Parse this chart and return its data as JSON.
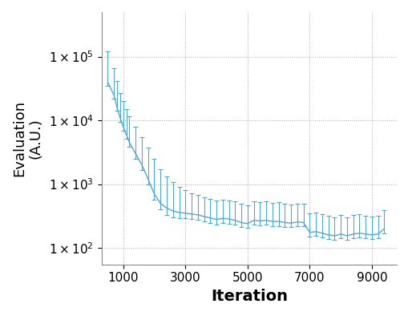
{
  "xlabel": "Iteration",
  "ylabel": "Evaluation\n(A.U.)",
  "line_color": "#4EA8D2",
  "background_color": "#ffffff",
  "xlim": [
    300,
    9800
  ],
  "ylim": [
    55,
    500000
  ],
  "xticks": [
    1000,
    3000,
    5000,
    7000,
    9000
  ],
  "iterations": [
    500,
    700,
    800,
    900,
    1000,
    1100,
    1200,
    1400,
    1600,
    1800,
    2000,
    2200,
    2400,
    2600,
    2800,
    3000,
    3200,
    3400,
    3600,
    3800,
    4000,
    4200,
    4400,
    4600,
    4800,
    5000,
    5200,
    5400,
    5600,
    5800,
    6000,
    6200,
    6400,
    6600,
    6800,
    7000,
    7200,
    7400,
    7600,
    7800,
    8000,
    8200,
    8400,
    8600,
    8800,
    9000,
    9200,
    9400
  ],
  "best_values": [
    40000,
    25000,
    16000,
    11000,
    8000,
    6000,
    4500,
    3000,
    2000,
    1200,
    700,
    500,
    420,
    380,
    360,
    350,
    340,
    330,
    310,
    295,
    280,
    290,
    285,
    270,
    250,
    240,
    270,
    265,
    270,
    260,
    260,
    250,
    245,
    255,
    250,
    175,
    180,
    170,
    160,
    155,
    165,
    155,
    165,
    170,
    165,
    160,
    165,
    200
  ],
  "err_lower_mag": [
    5000,
    3000,
    2000,
    1500,
    1200,
    900,
    700,
    500,
    350,
    200,
    130,
    100,
    90,
    80,
    70,
    60,
    55,
    55,
    50,
    50,
    45,
    45,
    45,
    40,
    38,
    35,
    40,
    38,
    40,
    38,
    38,
    35,
    33,
    35,
    33,
    25,
    26,
    24,
    22,
    22,
    24,
    22,
    24,
    25,
    24,
    22,
    24,
    30
  ],
  "err_upper_mag": [
    80000,
    40000,
    25000,
    16000,
    12000,
    9000,
    7000,
    5000,
    3500,
    2500,
    1800,
    1200,
    900,
    700,
    550,
    450,
    380,
    340,
    310,
    290,
    270,
    280,
    275,
    265,
    240,
    230,
    270,
    260,
    270,
    250,
    255,
    240,
    235,
    245,
    240,
    170,
    175,
    165,
    155,
    150,
    160,
    148,
    160,
    165,
    158,
    153,
    158,
    195
  ],
  "xlabel_fontsize": 14,
  "ylabel_fontsize": 13,
  "tick_fontsize": 11
}
